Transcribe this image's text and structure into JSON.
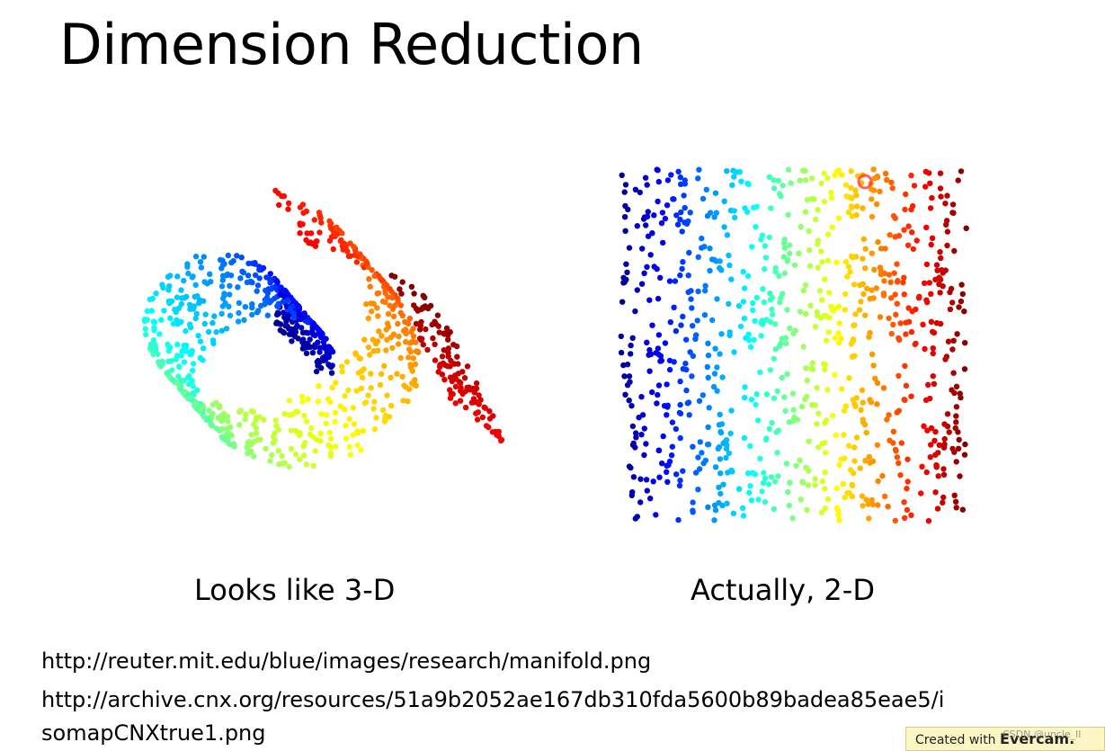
{
  "slide": {
    "title": "Dimension Reduction"
  },
  "figures": {
    "left_caption": "Looks like 3-D",
    "right_caption": "Actually, 2-D",
    "left_image": "swiss roll manifold scatter",
    "right_image": "unrolled 2-D scatter"
  },
  "sources": {
    "line1": "http://reuter.mit.edu/blue/images/research/manifold.png",
    "line2": "http://archive.cnx.org/resources/51a9b2052ae167db310fda5600b89badea85eae5/i",
    "line3": "somapCNXtrue1.png"
  },
  "badge": {
    "prefix": "Created with ",
    "brand": "Evercam."
  },
  "watermark": {
    "text": "CSDN @uncle_ll"
  },
  "colors": {
    "gradient": [
      "#00008f",
      "#0000ff",
      "#0080ff",
      "#00ffff",
      "#80ff80",
      "#ffff00",
      "#ff8000",
      "#ff0000",
      "#800000"
    ],
    "highlight": "#ff3b3b"
  }
}
